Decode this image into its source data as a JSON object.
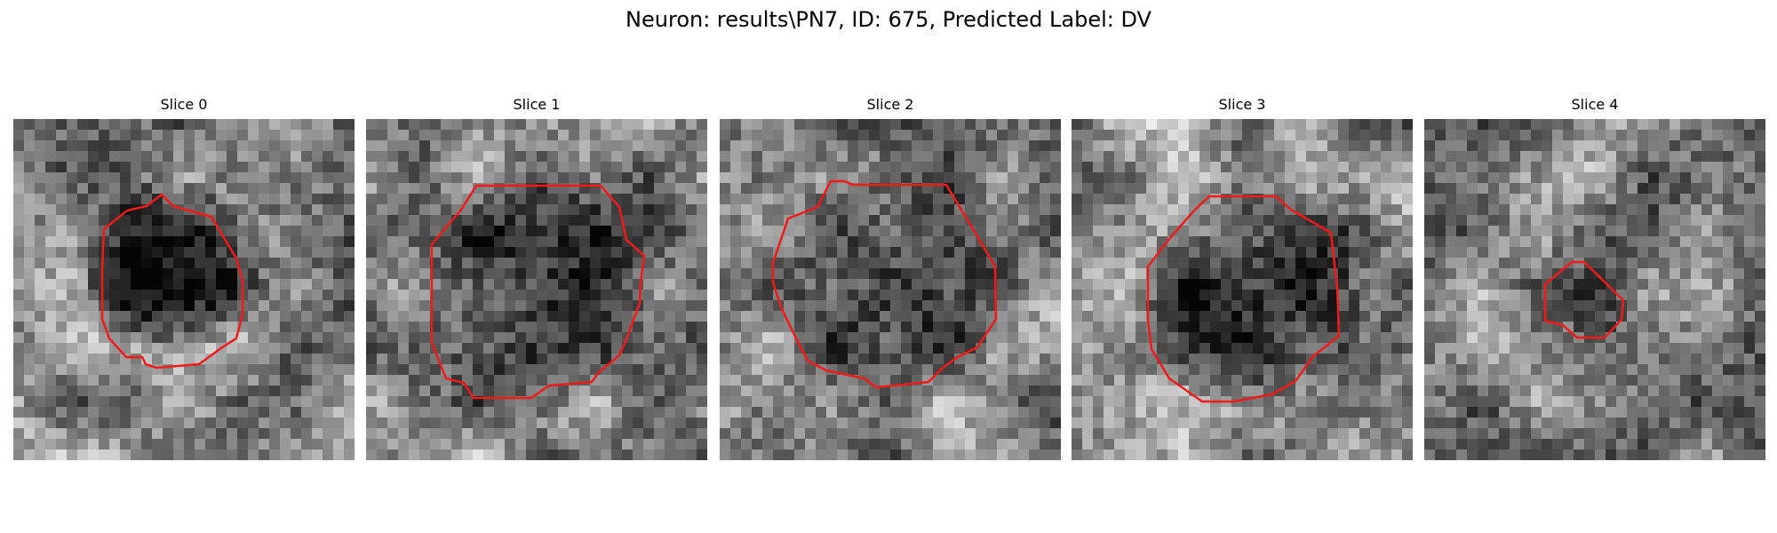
{
  "figure": {
    "title": "Neuron: results\\PN7, ID: 675, Predicted Label: DV"
  },
  "panels": [
    {
      "title": "Slice 0",
      "seed": 11,
      "blob": [
        0.46,
        0.43,
        0.27
      ],
      "dark": 0.34,
      "contour_color": "#ee1b1b"
    },
    {
      "title": "Slice 1",
      "seed": 23,
      "blob": [
        0.5,
        0.52,
        0.37
      ],
      "dark": 0.32,
      "contour_color": "#ee1b1b"
    },
    {
      "title": "Slice 2",
      "seed": 37,
      "blob": [
        0.5,
        0.47,
        0.37
      ],
      "dark": 0.22,
      "contour_color": "#ee1b1b"
    },
    {
      "title": "Slice 3",
      "seed": 41,
      "blob": [
        0.53,
        0.51,
        0.35
      ],
      "dark": 0.36,
      "contour_color": "#ee1b1b"
    },
    {
      "title": "Slice 4",
      "seed": 53,
      "blob": [
        0.52,
        0.52,
        0.12
      ],
      "dark": 0.12,
      "contour_color": "#ee1b1b"
    }
  ]
}
